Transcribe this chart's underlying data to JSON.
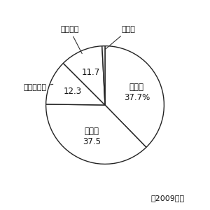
{
  "labels": [
    "キリン",
    "アサヒ",
    "サントリー",
    "サッポロ",
    "その他"
  ],
  "values": [
    37.7,
    37.5,
    12.3,
    11.7,
    0.8
  ],
  "colors": [
    "#ffffff",
    "#ffffff",
    "#ffffff",
    "#ffffff",
    "#e8e8e8"
  ],
  "edge_color": "#222222",
  "start_angle": 90,
  "inside_labels": [
    {
      "text": "キリン\n37.7%",
      "r": 0.58
    },
    {
      "text": "アサヒ\n37.5",
      "r": 0.58
    },
    {
      "text": "12.3",
      "r": 0.6
    },
    {
      "text": "11.7",
      "r": 0.6
    },
    {
      "text": "",
      "r": 0.6
    }
  ],
  "year_text": "（2009年）",
  "background_color": "#ffffff",
  "figsize": [
    3.0,
    3.0
  ],
  "dpi": 100,
  "linewidth": 1.0
}
